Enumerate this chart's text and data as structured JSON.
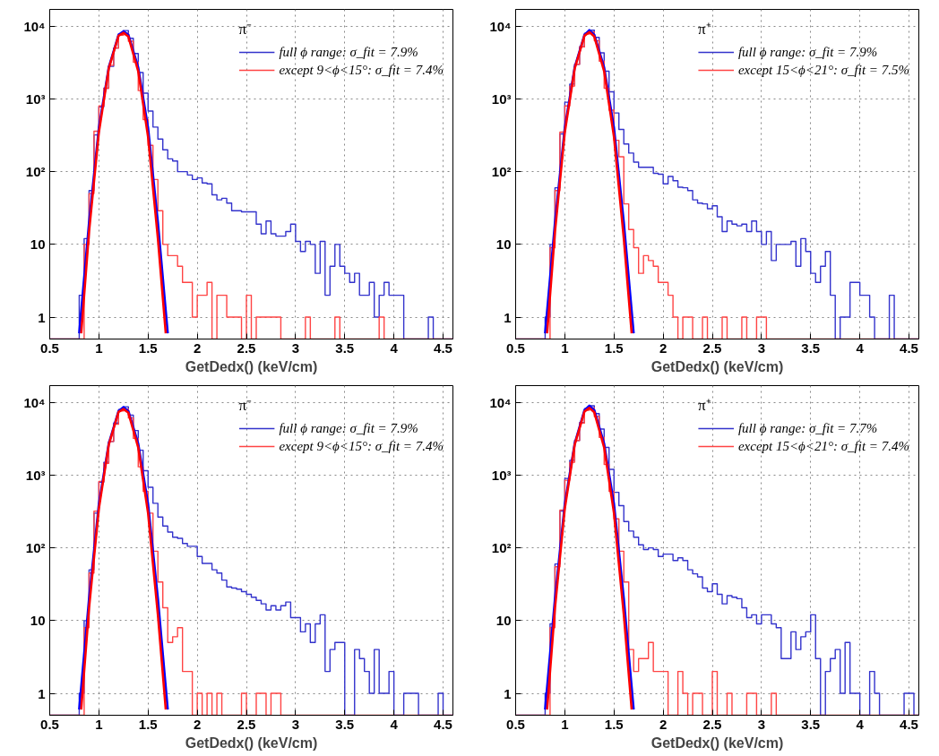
{
  "chart_data": [
    {
      "type": "histogram",
      "legend_title": "π⁻",
      "xlabel": "GetDedx() (keV/cm)",
      "log": true,
      "grid": true,
      "legend": "top right",
      "xlim": [
        0.5,
        4.6
      ],
      "ylim": [
        0.5,
        17000
      ],
      "xticks": [
        0.5,
        1,
        1.5,
        2,
        2.5,
        3,
        3.5,
        4,
        4.5
      ],
      "yticks": [
        1,
        10,
        {
          "value": 100,
          "label": "10²"
        },
        {
          "value": 1000,
          "label": "10³"
        },
        {
          "value": 10000,
          "label": "10⁴"
        }
      ],
      "bins": [
        0.5,
        0.55,
        0.6,
        0.65,
        0.7,
        0.75,
        0.8,
        0.85,
        0.9,
        0.95,
        1.0,
        1.05,
        1.1,
        1.15,
        1.2,
        1.25,
        1.3,
        1.35,
        1.4,
        1.45,
        1.5,
        1.55,
        1.6,
        1.65,
        1.7,
        1.75,
        1.8,
        1.85,
        1.9,
        1.95,
        2.0,
        2.05,
        2.1,
        2.15,
        2.2,
        2.25,
        2.3,
        2.35,
        2.4,
        2.45,
        2.5,
        2.55,
        2.6,
        2.65,
        2.7,
        2.75,
        2.8,
        2.85,
        2.9,
        2.95,
        3.0,
        3.05,
        3.1,
        3.15,
        3.2,
        3.25,
        3.3,
        3.35,
        3.4,
        3.45,
        3.5,
        3.55,
        3.6,
        3.65,
        3.7,
        3.75,
        3.8,
        3.85,
        3.9,
        3.95,
        4.0,
        4.05,
        4.1,
        4.15,
        4.2,
        4.25,
        4.3,
        4.35,
        4.4,
        4.45,
        4.5,
        4.55,
        4.6
      ],
      "series": [
        {
          "name": "full ϕ range: σ_fit = 7.9%",
          "color": "#3333cc",
          "values": [
            null,
            null,
            null,
            null,
            null,
            null,
            2,
            12,
            55,
            320,
            780,
            1400,
            2800,
            5000,
            7800,
            8700,
            6800,
            4200,
            2300,
            1200,
            680,
            410,
            280,
            200,
            150,
            140,
            100,
            100,
            90,
            78,
            82,
            70,
            68,
            48,
            41,
            43,
            37,
            29,
            29,
            28,
            28,
            28,
            19,
            14,
            21,
            14,
            13,
            13,
            15,
            19,
            11,
            8,
            11,
            10,
            4,
            11,
            2,
            5,
            10,
            5,
            4,
            3,
            4,
            2,
            2,
            3,
            1,
            2,
            3,
            2,
            2,
            2,
            null,
            null,
            null,
            null,
            null,
            1,
            null,
            null,
            null,
            null
          ]
        },
        {
          "name": "except 9<ϕ<15°: σ_fit = 7.4%",
          "color": "#ff4444",
          "values": [
            null,
            null,
            null,
            null,
            null,
            null,
            null,
            10,
            50,
            360,
            800,
            1400,
            2900,
            5000,
            7500,
            8000,
            6200,
            3200,
            1300,
            520,
            230,
            78,
            29,
            10,
            7,
            7,
            5,
            3,
            3,
            1,
            2,
            2,
            3,
            null,
            2,
            2,
            1,
            1,
            1,
            null,
            2,
            null,
            1,
            1,
            1,
            1,
            1,
            null,
            null,
            null,
            null,
            null,
            1,
            null,
            null,
            null,
            null,
            null,
            1,
            null,
            null,
            null,
            null,
            null,
            null,
            null,
            null,
            1,
            null,
            null,
            null,
            null,
            null,
            null,
            null,
            null,
            null,
            null,
            null,
            null,
            null,
            null
          ]
        },
        {
          "type": "line",
          "color": "#0000ff",
          "x": [
            0.8,
            0.9,
            1.0,
            1.1,
            1.2,
            1.25,
            1.3,
            1.4,
            1.5,
            1.6,
            1.7
          ],
          "values": [
            0.6,
            20,
            400,
            2700,
            7600,
            8500,
            7600,
            2700,
            400,
            20,
            0.6
          ]
        },
        {
          "type": "line",
          "color": "#ff0000",
          "x": [
            0.82,
            0.9,
            1.0,
            1.1,
            1.2,
            1.25,
            1.3,
            1.4,
            1.5,
            1.6,
            1.68
          ],
          "values": [
            0.6,
            15,
            350,
            2600,
            7400,
            8100,
            7200,
            2400,
            300,
            12,
            0.6
          ]
        }
      ]
    },
    {
      "type": "histogram",
      "legend_title": "π⁺",
      "xlabel": "GetDedx() (keV/cm)",
      "log": true,
      "grid": true,
      "legend": "top right",
      "xlim": [
        0.5,
        4.6
      ],
      "ylim": [
        0.5,
        17000
      ],
      "xticks": [
        0.5,
        1,
        1.5,
        2,
        2.5,
        3,
        3.5,
        4,
        4.5
      ],
      "yticks": [
        1,
        10,
        {
          "value": 100,
          "label": "10²"
        },
        {
          "value": 1000,
          "label": "10³"
        },
        {
          "value": 10000,
          "label": "10⁴"
        }
      ],
      "bins": [
        0.5,
        0.55,
        0.6,
        0.65,
        0.7,
        0.75,
        0.8,
        0.85,
        0.9,
        0.95,
        1.0,
        1.05,
        1.1,
        1.15,
        1.2,
        1.25,
        1.3,
        1.35,
        1.4,
        1.45,
        1.5,
        1.55,
        1.6,
        1.65,
        1.7,
        1.75,
        1.8,
        1.85,
        1.9,
        1.95,
        2.0,
        2.05,
        2.1,
        2.15,
        2.2,
        2.25,
        2.3,
        2.35,
        2.4,
        2.45,
        2.5,
        2.55,
        2.6,
        2.65,
        2.7,
        2.75,
        2.8,
        2.85,
        2.9,
        2.95,
        3.0,
        3.05,
        3.1,
        3.15,
        3.2,
        3.25,
        3.3,
        3.35,
        3.4,
        3.45,
        3.5,
        3.55,
        3.6,
        3.65,
        3.7,
        3.75,
        3.8,
        3.85,
        3.9,
        3.95,
        4.0,
        4.05,
        4.1,
        4.15,
        4.2,
        4.25,
        4.3,
        4.35,
        4.4,
        4.45,
        4.5,
        4.55,
        4.6
      ],
      "series": [
        {
          "name": "full ϕ range: σ_fit = 7.9%",
          "color": "#3333cc",
          "values": [
            null,
            null,
            null,
            null,
            null,
            null,
            1,
            10,
            60,
            330,
            900,
            1600,
            3000,
            5200,
            8000,
            8800,
            7000,
            4300,
            2400,
            1250,
            640,
            380,
            240,
            180,
            135,
            115,
            115,
            115,
            95,
            92,
            68,
            86,
            75,
            61,
            60,
            55,
            41,
            37,
            36,
            31,
            34,
            24,
            15,
            21,
            19,
            18,
            19,
            15,
            21,
            15,
            10,
            15,
            6,
            10,
            10,
            10,
            11,
            5,
            12,
            8,
            4,
            3,
            5,
            8,
            2,
            null,
            1,
            1,
            3,
            3,
            2,
            2,
            1,
            null,
            null,
            null,
            2,
            null,
            null,
            null,
            null,
            null
          ]
        },
        {
          "name": "except 15<ϕ<21°: σ_fit = 7.5%",
          "color": "#ff4444",
          "values": [
            null,
            null,
            null,
            null,
            null,
            null,
            null,
            9,
            55,
            350,
            800,
            1500,
            3000,
            5200,
            7800,
            8300,
            6300,
            3300,
            1400,
            700,
            270,
            160,
            36,
            16,
            9,
            4,
            7,
            6,
            5,
            3,
            3,
            2,
            1,
            null,
            1,
            1,
            null,
            null,
            1,
            null,
            null,
            null,
            1,
            null,
            null,
            null,
            1,
            null,
            null,
            1,
            1,
            null,
            null,
            null,
            null,
            null,
            null,
            null,
            null,
            null,
            null,
            null,
            null,
            null,
            null,
            null,
            null,
            null,
            null,
            null,
            null,
            null,
            null,
            null,
            null,
            null,
            null,
            null,
            null,
            null,
            null,
            null
          ]
        },
        {
          "type": "line",
          "color": "#0000ff",
          "x": [
            0.8,
            0.9,
            1.0,
            1.1,
            1.2,
            1.25,
            1.3,
            1.4,
            1.5,
            1.6,
            1.7
          ],
          "values": [
            0.6,
            20,
            400,
            2700,
            7600,
            8800,
            7600,
            2700,
            400,
            20,
            0.6
          ]
        },
        {
          "type": "line",
          "color": "#ff0000",
          "x": [
            0.82,
            0.9,
            1.0,
            1.1,
            1.2,
            1.25,
            1.3,
            1.4,
            1.5,
            1.6,
            1.68
          ],
          "values": [
            0.6,
            15,
            350,
            2600,
            7400,
            8300,
            7200,
            2400,
            300,
            12,
            0.6
          ]
        }
      ]
    },
    {
      "type": "histogram",
      "legend_title": "π⁻",
      "xlabel": "GetDedx() (keV/cm)",
      "log": true,
      "grid": true,
      "legend": "top right",
      "xlim": [
        0.5,
        4.6
      ],
      "ylim": [
        0.5,
        17000
      ],
      "xticks": [
        0.5,
        1,
        1.5,
        2,
        2.5,
        3,
        3.5,
        4,
        4.5
      ],
      "yticks": [
        1,
        10,
        {
          "value": 100,
          "label": "10²"
        },
        {
          "value": 1000,
          "label": "10³"
        },
        {
          "value": 10000,
          "label": "10⁴"
        }
      ],
      "bins": [
        0.5,
        0.55,
        0.6,
        0.65,
        0.7,
        0.75,
        0.8,
        0.85,
        0.9,
        0.95,
        1.0,
        1.05,
        1.1,
        1.15,
        1.2,
        1.25,
        1.3,
        1.35,
        1.4,
        1.45,
        1.5,
        1.55,
        1.6,
        1.65,
        1.7,
        1.75,
        1.8,
        1.85,
        1.9,
        1.95,
        2.0,
        2.05,
        2.1,
        2.15,
        2.2,
        2.25,
        2.3,
        2.35,
        2.4,
        2.45,
        2.5,
        2.55,
        2.6,
        2.65,
        2.7,
        2.75,
        2.8,
        2.85,
        2.9,
        2.95,
        3.0,
        3.05,
        3.1,
        3.15,
        3.2,
        3.25,
        3.3,
        3.35,
        3.4,
        3.45,
        3.5,
        3.55,
        3.6,
        3.65,
        3.7,
        3.75,
        3.8,
        3.85,
        3.9,
        3.95,
        4.0,
        4.05,
        4.1,
        4.15,
        4.2,
        4.25,
        4.3,
        4.35,
        4.4,
        4.45,
        4.5,
        4.55,
        4.6
      ],
      "series": [
        {
          "name": "full ϕ range: σ_fit = 7.9%",
          "color": "#3333cc",
          "values": [
            null,
            null,
            null,
            null,
            null,
            null,
            1,
            10,
            50,
            300,
            800,
            1500,
            2900,
            5200,
            8000,
            8700,
            6700,
            4100,
            2200,
            1150,
            680,
            410,
            265,
            200,
            165,
            140,
            135,
            115,
            105,
            105,
            76,
            61,
            61,
            50,
            45,
            36,
            29,
            28,
            27,
            25,
            23,
            21,
            19,
            17,
            14,
            16,
            14,
            16,
            18,
            11,
            11,
            7,
            9,
            5,
            9,
            12,
            2,
            4,
            5,
            5,
            null,
            null,
            4,
            3,
            2,
            1,
            4,
            1,
            1,
            2,
            null,
            null,
            1,
            1,
            1,
            null,
            null,
            null,
            null,
            1,
            null,
            null
          ]
        },
        {
          "name": "except 9<ϕ<15°: σ_fit = 7.4%",
          "color": "#ff4444",
          "values": [
            null,
            null,
            null,
            null,
            null,
            null,
            null,
            8,
            45,
            320,
            820,
            1450,
            2900,
            5000,
            7600,
            8100,
            6100,
            3200,
            1300,
            600,
            300,
            90,
            34,
            15,
            5,
            6,
            8,
            2,
            2,
            null,
            1,
            null,
            1,
            null,
            1,
            null,
            null,
            null,
            null,
            1,
            null,
            null,
            1,
            1,
            null,
            1,
            1,
            null,
            null,
            null,
            null,
            null,
            null,
            null,
            null,
            null,
            null,
            null,
            null,
            null,
            null,
            null,
            null,
            null,
            null,
            null,
            null,
            null,
            null,
            null,
            null,
            null,
            null,
            null,
            null,
            null,
            null,
            null,
            null,
            null,
            null,
            null
          ]
        },
        {
          "type": "line",
          "color": "#0000ff",
          "x": [
            0.8,
            0.9,
            1.0,
            1.1,
            1.2,
            1.25,
            1.3,
            1.4,
            1.5,
            1.6,
            1.7
          ],
          "values": [
            0.6,
            20,
            400,
            2700,
            7600,
            8600,
            7600,
            2700,
            400,
            20,
            0.6
          ]
        },
        {
          "type": "line",
          "color": "#ff0000",
          "x": [
            0.82,
            0.9,
            1.0,
            1.1,
            1.2,
            1.25,
            1.3,
            1.4,
            1.5,
            1.6,
            1.68
          ],
          "values": [
            0.6,
            15,
            350,
            2600,
            7400,
            8100,
            7200,
            2400,
            300,
            12,
            0.6
          ]
        }
      ]
    },
    {
      "type": "histogram",
      "legend_title": "π⁺",
      "xlabel": "GetDedx() (keV/cm)",
      "log": true,
      "grid": true,
      "legend": "top right",
      "xlim": [
        0.5,
        4.6
      ],
      "ylim": [
        0.5,
        17000
      ],
      "xticks": [
        0.5,
        1,
        1.5,
        2,
        2.5,
        3,
        3.5,
        4,
        4.5
      ],
      "yticks": [
        1,
        10,
        {
          "value": 100,
          "label": "10²"
        },
        {
          "value": 1000,
          "label": "10³"
        },
        {
          "value": 10000,
          "label": "10⁴"
        }
      ],
      "bins": [
        0.5,
        0.55,
        0.6,
        0.65,
        0.7,
        0.75,
        0.8,
        0.85,
        0.9,
        0.95,
        1.0,
        1.05,
        1.1,
        1.15,
        1.2,
        1.25,
        1.3,
        1.35,
        1.4,
        1.45,
        1.5,
        1.55,
        1.6,
        1.65,
        1.7,
        1.75,
        1.8,
        1.85,
        1.9,
        1.95,
        2.0,
        2.05,
        2.1,
        2.15,
        2.2,
        2.25,
        2.3,
        2.35,
        2.4,
        2.45,
        2.5,
        2.55,
        2.6,
        2.65,
        2.7,
        2.75,
        2.8,
        2.85,
        2.9,
        2.95,
        3.0,
        3.05,
        3.1,
        3.15,
        3.2,
        3.25,
        3.3,
        3.35,
        3.4,
        3.45,
        3.5,
        3.55,
        3.6,
        3.65,
        3.7,
        3.75,
        3.8,
        3.85,
        3.9,
        3.95,
        4.0,
        4.05,
        4.1,
        4.15,
        4.2,
        4.25,
        4.3,
        4.35,
        4.4,
        4.45,
        4.5,
        4.55,
        4.6
      ],
      "series": [
        {
          "name": "full ϕ range: σ_fit = 7.7%",
          "color": "#3333cc",
          "values": [
            null,
            null,
            null,
            null,
            null,
            null,
            1,
            9,
            60,
            320,
            900,
            1600,
            3000,
            5300,
            8200,
            9000,
            7000,
            4300,
            2400,
            1200,
            580,
            380,
            230,
            170,
            140,
            110,
            95,
            100,
            95,
            76,
            82,
            82,
            67,
            73,
            67,
            50,
            44,
            40,
            28,
            25,
            32,
            23,
            17,
            22,
            21,
            20,
            15,
            11,
            12,
            9,
            12,
            12,
            9,
            8,
            3,
            3,
            7,
            4,
            6,
            7,
            12,
            3,
            null,
            2,
            3,
            4,
            1,
            5,
            1,
            1,
            null,
            null,
            2,
            1,
            null,
            null,
            null,
            null,
            null,
            1,
            1,
            null
          ]
        },
        {
          "name": "except 15<ϕ<21°: σ_fit = 7.4%",
          "color": "#ff4444",
          "values": [
            null,
            null,
            null,
            null,
            null,
            null,
            null,
            8,
            55,
            330,
            850,
            1500,
            3000,
            5200,
            7800,
            8400,
            6400,
            3300,
            1400,
            600,
            250,
            90,
            34,
            4,
            2,
            3,
            3,
            5,
            2,
            2,
            2,
            null,
            null,
            2,
            1,
            null,
            1,
            1,
            null,
            null,
            2,
            null,
            null,
            1,
            null,
            null,
            null,
            1,
            1,
            null,
            null,
            null,
            1,
            null,
            null,
            null,
            null,
            null,
            null,
            null,
            null,
            null,
            null,
            null,
            null,
            null,
            null,
            null,
            null,
            null,
            null,
            null,
            null,
            null,
            null,
            null,
            null,
            null,
            null,
            null,
            null,
            null
          ]
        },
        {
          "type": "line",
          "color": "#0000ff",
          "x": [
            0.8,
            0.9,
            1.0,
            1.1,
            1.2,
            1.25,
            1.3,
            1.4,
            1.5,
            1.6,
            1.7
          ],
          "values": [
            0.6,
            20,
            400,
            2700,
            7800,
            9000,
            7800,
            2700,
            400,
            20,
            0.6
          ]
        },
        {
          "type": "line",
          "color": "#ff0000",
          "x": [
            0.82,
            0.9,
            1.0,
            1.1,
            1.2,
            1.25,
            1.3,
            1.4,
            1.5,
            1.6,
            1.68
          ],
          "values": [
            0.6,
            15,
            350,
            2600,
            7500,
            8400,
            7300,
            2400,
            300,
            12,
            0.6
          ]
        }
      ]
    }
  ]
}
